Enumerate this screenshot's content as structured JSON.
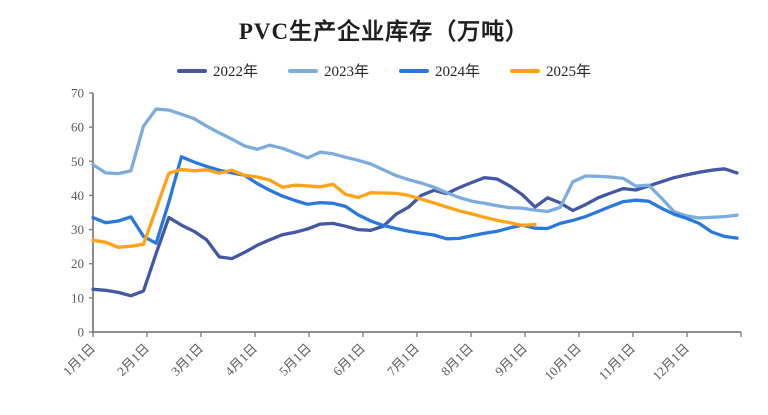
{
  "title": "PVC生产企业库存（万吨）",
  "colors": {
    "axis_line": "#7f7f7f",
    "tick_text": "#595959",
    "title_text": "#1f1f1f",
    "series_2022": "#4358A5",
    "series_2023": "#7CACDC",
    "series_2024": "#2A78DD",
    "series_2025": "#FFA215"
  },
  "chart_data": {
    "type": "line",
    "title": "PVC生产企业库存（万吨）",
    "xlabel": "",
    "ylabel": "",
    "ylim": [
      0,
      70
    ],
    "y_tick_step": 10,
    "y_tick_labels": [
      "0",
      "10",
      "20",
      "30",
      "40",
      "50",
      "60",
      "70"
    ],
    "x_tick_labels": [
      "1月1日",
      "2月1日",
      "3月1日",
      "4月1日",
      "5月1日",
      "6月1日",
      "7月1日",
      "8月1日",
      "9月1日",
      "10月1日",
      "11月1日",
      "12月1日"
    ],
    "x_unit": "weekly points, Jan 1 to Dec 31",
    "grid": false,
    "legend_position": "top",
    "series": [
      {
        "name": "2022年",
        "color": "#4358A5",
        "values": [
          12.5,
          12.2,
          11.6,
          10.6,
          12.0,
          23.0,
          33.5,
          31.3,
          29.5,
          27.0,
          22.0,
          21.5,
          23.3,
          25.4,
          27.0,
          28.5,
          29.2,
          30.2,
          31.6,
          31.8,
          31.0,
          30.0,
          29.8,
          31.0,
          34.5,
          36.6,
          40.0,
          41.5,
          40.5,
          42.3,
          43.8,
          45.2,
          44.8,
          42.8,
          40.2,
          36.6,
          39.3,
          37.8,
          35.6,
          37.3,
          39.3,
          40.7,
          42.0,
          41.6,
          42.8,
          44.0,
          45.2,
          46.0,
          46.8,
          47.4,
          47.8,
          46.6
        ]
      },
      {
        "name": "2023年",
        "color": "#7CACDC",
        "values": [
          49.0,
          46.6,
          46.4,
          47.2,
          60.3,
          65.3,
          65.0,
          63.8,
          62.5,
          60.3,
          58.3,
          56.5,
          54.5,
          53.5,
          54.7,
          53.8,
          52.4,
          51.0,
          52.7,
          52.2,
          51.2,
          50.3,
          49.2,
          47.5,
          45.8,
          44.6,
          43.6,
          42.4,
          40.8,
          39.4,
          38.3,
          37.7,
          37.0,
          36.4,
          36.3,
          35.7,
          35.3,
          36.5,
          44.0,
          45.7,
          45.6,
          45.4,
          45.0,
          42.7,
          43.0,
          39.3,
          35.3,
          34.0,
          33.4,
          33.6,
          33.8,
          34.2
        ]
      },
      {
        "name": "2024年",
        "color": "#2A78DD",
        "values": [
          33.5,
          32.0,
          32.5,
          33.7,
          28.0,
          26.0,
          38.0,
          51.3,
          49.8,
          48.5,
          47.4,
          46.6,
          45.9,
          43.5,
          41.5,
          39.8,
          38.5,
          37.4,
          37.9,
          37.7,
          36.8,
          34.3,
          32.5,
          31.2,
          30.3,
          29.5,
          28.9,
          28.4,
          27.3,
          27.4,
          28.2,
          28.9,
          29.5,
          30.5,
          31.3,
          30.4,
          30.3,
          31.8,
          32.7,
          33.8,
          35.3,
          36.8,
          38.2,
          38.6,
          38.3,
          36.3,
          34.5,
          33.3,
          31.8,
          29.3,
          28.0,
          27.5
        ]
      },
      {
        "name": "2025年",
        "color": "#FFA215",
        "values": [
          26.9,
          26.3,
          24.8,
          25.1,
          25.7,
          36.0,
          46.5,
          47.6,
          47.2,
          47.5,
          46.5,
          47.4,
          45.9,
          45.4,
          44.5,
          42.4,
          43.0,
          42.8,
          42.5,
          43.3,
          40.3,
          39.4,
          40.8,
          40.7,
          40.6,
          40.0,
          38.9,
          37.8,
          36.6,
          35.5,
          34.6,
          33.6,
          32.7,
          32.0,
          31.2,
          31.5
        ]
      }
    ]
  }
}
